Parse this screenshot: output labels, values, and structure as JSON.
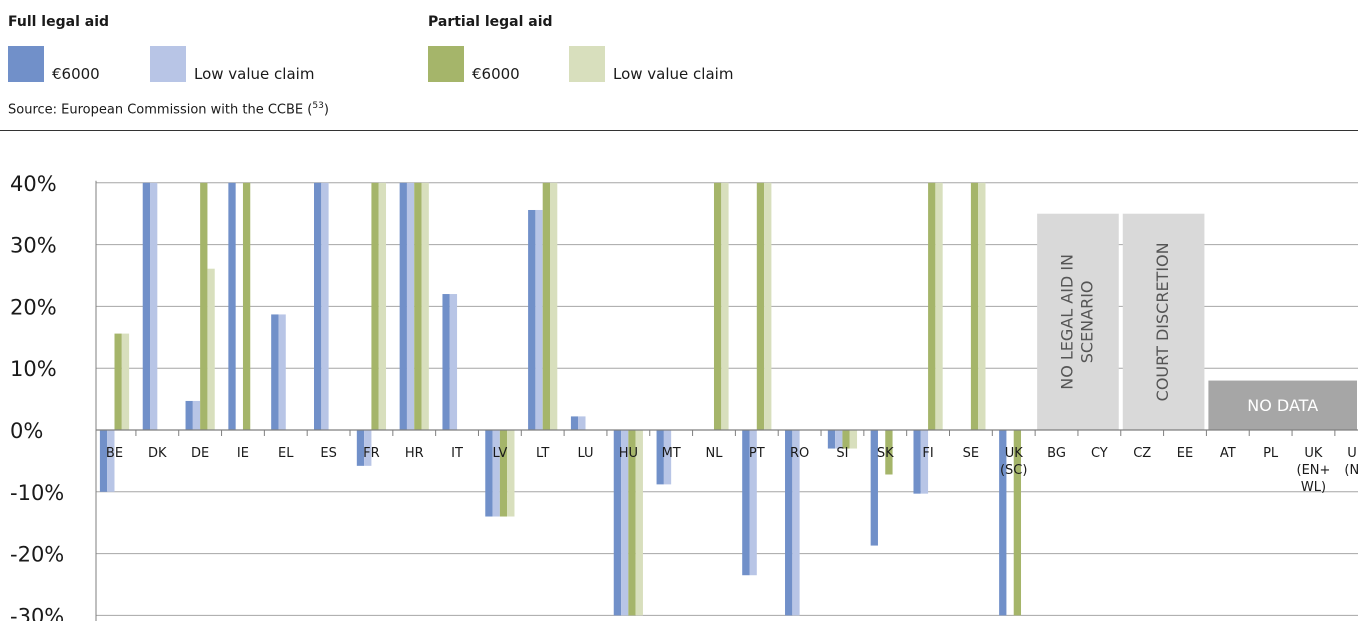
{
  "legend": {
    "full": {
      "title": "Full legal aid",
      "items": [
        {
          "label": "€6000",
          "color": "#7190c9"
        },
        {
          "label": "Low value claim",
          "color": "#b8c5e6"
        }
      ]
    },
    "partial": {
      "title": "Partial legal aid",
      "items": [
        {
          "label": "€6000",
          "color": "#a5b56a"
        },
        {
          "label": "Low value claim",
          "color": "#d8dfbd"
        }
      ]
    }
  },
  "source": {
    "text": "Source: European Commission with the CCBE",
    "note": "53"
  },
  "chart_data": {
    "type": "bar",
    "ylim": [
      -30,
      40
    ],
    "yticks": [
      {
        "value": 40,
        "label": "40%"
      },
      {
        "value": 30,
        "label": "30%"
      },
      {
        "value": 20,
        "label": "20%"
      },
      {
        "value": 10,
        "label": "10%"
      },
      {
        "value": 0,
        "label": "0%"
      },
      {
        "value": -10,
        "label": "-10%"
      },
      {
        "value": -20,
        "label": "-20%"
      },
      {
        "value": -30,
        "label": "-30%"
      }
    ],
    "grid": true,
    "categories": [
      "BE",
      "DK",
      "DE",
      "IE",
      "EL",
      "ES",
      "FR",
      "HR",
      "IT",
      "LV",
      "LT",
      "LU",
      "HU",
      "MT",
      "NL",
      "PT",
      "RO",
      "SI",
      "SK",
      "FI",
      "SE",
      "UK (SC)",
      "BG",
      "CY",
      "CZ",
      "EE",
      "AT",
      "PL",
      "UK (EN+ WL)",
      "UK (NI)"
    ],
    "category_label_lines": [
      [
        "BE"
      ],
      [
        "DK"
      ],
      [
        "DE"
      ],
      [
        "IE"
      ],
      [
        "EL"
      ],
      [
        "ES"
      ],
      [
        "FR"
      ],
      [
        "HR"
      ],
      [
        "IT"
      ],
      [
        "LV"
      ],
      [
        "LT"
      ],
      [
        "LU"
      ],
      [
        "HU"
      ],
      [
        "MT"
      ],
      [
        "NL"
      ],
      [
        "PT"
      ],
      [
        "RO"
      ],
      [
        "SI"
      ],
      [
        "SK"
      ],
      [
        "FI"
      ],
      [
        "SE"
      ],
      [
        "UK",
        "(SC)"
      ],
      [
        "BG"
      ],
      [
        "CY"
      ],
      [
        "CZ"
      ],
      [
        "EE"
      ],
      [
        "AT"
      ],
      [
        "PL"
      ],
      [
        "UK",
        "(EN+",
        "WL)"
      ],
      [
        "UK",
        "(NI)"
      ]
    ],
    "series": [
      {
        "name": "€6000",
        "group": "Full legal aid",
        "color": "#7190c9",
        "values": [
          -10,
          40,
          4.7,
          40,
          18.7,
          40,
          -5.8,
          40,
          22,
          -14,
          35.6,
          2.2,
          -30,
          -8.8,
          null,
          -23.5,
          -30,
          -3,
          -18.7,
          -10.3,
          null,
          -30,
          null,
          null,
          null,
          null,
          null,
          null,
          null,
          null
        ]
      },
      {
        "name": "Low value claim",
        "group": "Full legal aid",
        "color": "#b8c5e6",
        "values": [
          -10,
          40,
          4.7,
          null,
          18.7,
          40,
          -5.8,
          40,
          22,
          -14,
          35.6,
          2.2,
          -30,
          -8.8,
          null,
          -23.5,
          -30,
          -3,
          null,
          -10.3,
          null,
          null,
          null,
          null,
          null,
          null,
          null,
          null,
          null,
          null
        ]
      },
      {
        "name": "€6000",
        "group": "Partial legal aid",
        "color": "#a5b56a",
        "values": [
          15.6,
          null,
          40,
          40,
          null,
          null,
          40,
          40,
          null,
          -14,
          40,
          null,
          -30,
          null,
          40,
          40,
          null,
          -3,
          -7.2,
          40,
          40,
          -30,
          null,
          null,
          null,
          null,
          null,
          null,
          null,
          null
        ]
      },
      {
        "name": "Low value claim",
        "group": "Partial legal aid",
        "color": "#d8dfbd",
        "values": [
          15.6,
          null,
          26.1,
          null,
          null,
          null,
          40,
          40,
          null,
          -14,
          40,
          null,
          -30,
          null,
          40,
          40,
          null,
          -3,
          null,
          40,
          40,
          null,
          null,
          null,
          null,
          null,
          null,
          null,
          null,
          null
        ]
      }
    ],
    "annotations": [
      {
        "text": "NO LEGAL AID IN SCENARIO",
        "lines": [
          "NO LEGAL AID IN",
          "SCENARIO"
        ],
        "categories": [
          "BG",
          "CY"
        ],
        "orientation": "vertical",
        "color": "#d9d9d9",
        "range": [
          0,
          35
        ]
      },
      {
        "text": "COURT DISCRETION",
        "lines": [
          "COURT DISCRETION"
        ],
        "categories": [
          "CZ",
          "EE"
        ],
        "orientation": "vertical",
        "color": "#d9d9d9",
        "range": [
          0,
          35
        ]
      },
      {
        "text": "NO DATA",
        "lines": [
          "NO DATA"
        ],
        "categories": [
          "AT",
          "PL",
          "UK (EN+ WL)",
          "UK (NI)"
        ],
        "orientation": "horizontal",
        "color": "#a6a6a6",
        "range": [
          0,
          8
        ]
      }
    ]
  }
}
